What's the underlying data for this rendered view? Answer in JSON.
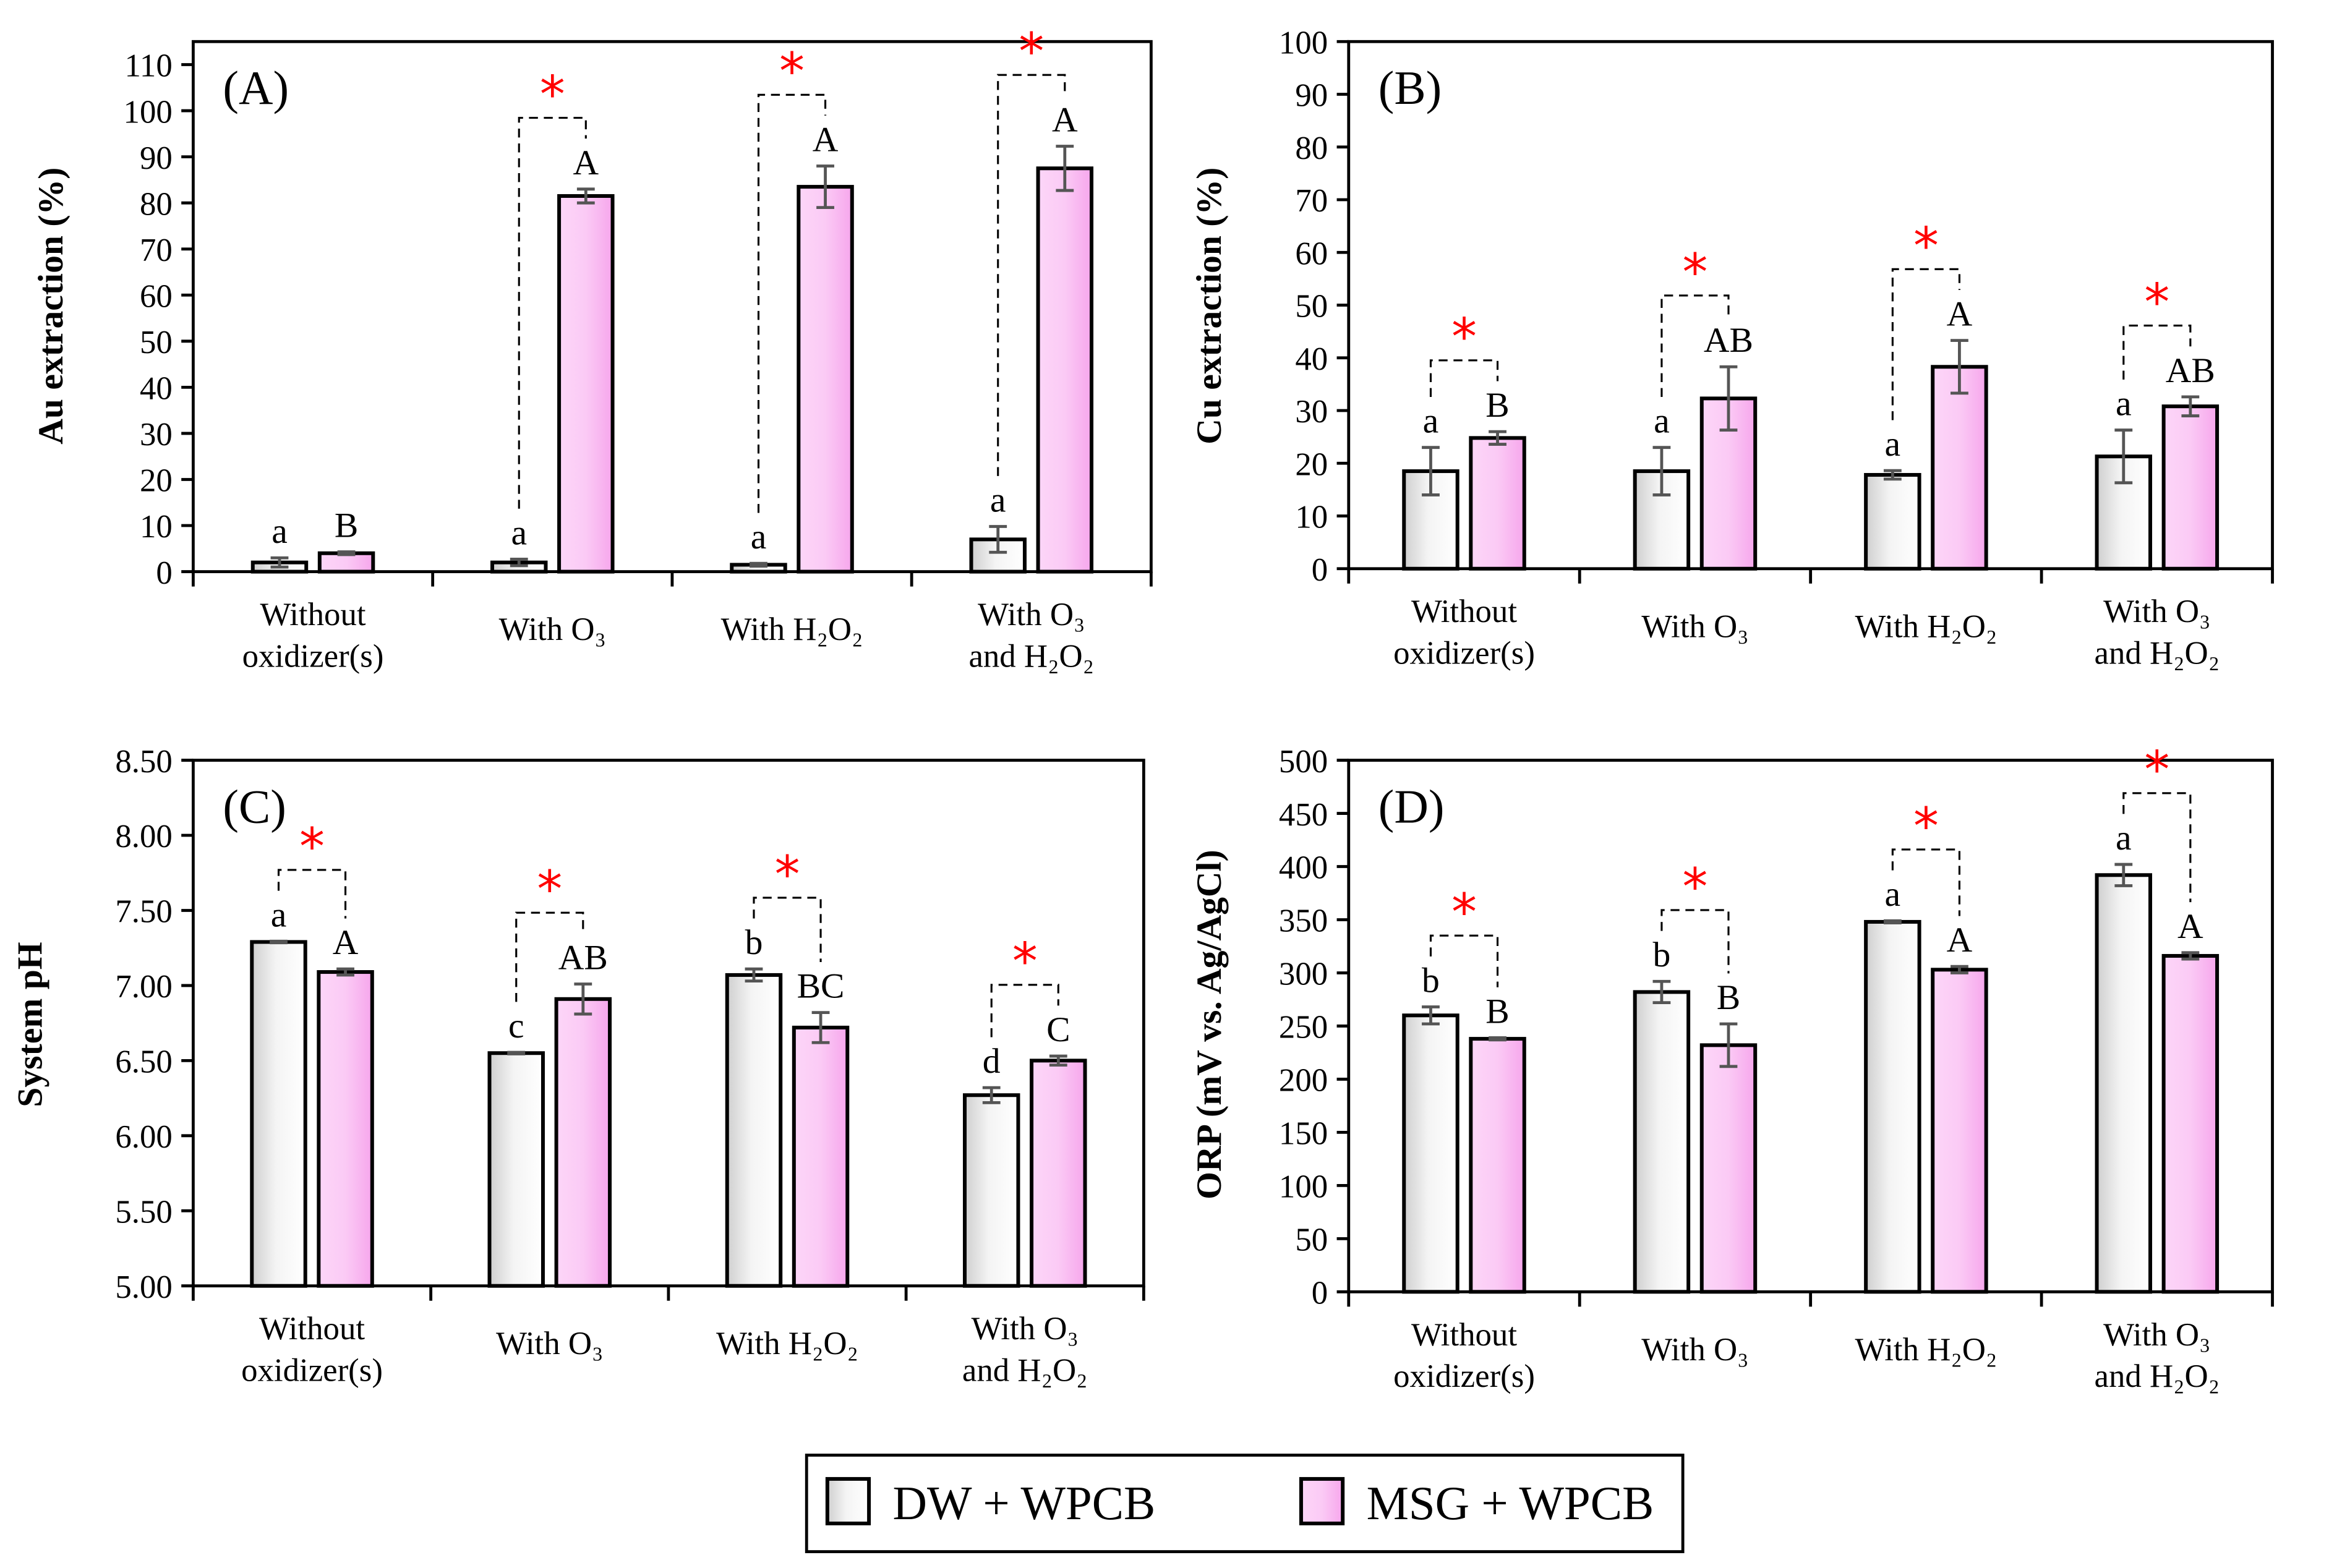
{
  "legend": {
    "entries": [
      {
        "label": "DW + WPCB",
        "color": "#ffffff"
      },
      {
        "label": "MSG + WPCB",
        "color": "#f7b8f0"
      }
    ]
  },
  "colors": {
    "dw": "#ffffff",
    "dw_shade": "#d0d0d0",
    "msg": "#fbc6f4",
    "msg_shade": "#f28ee6",
    "star": "#ff0000",
    "error": "#555555"
  },
  "chart_data": [
    {
      "type": "bar",
      "panel_label": "(A)",
      "ylabel": "Au extraction (%)",
      "categories": [
        [
          "Without",
          "oxidizer(s)"
        ],
        [
          "With O₃"
        ],
        [
          "With H₂O₂"
        ],
        [
          "With O₃",
          "and H₂O₂"
        ]
      ],
      "ylim": [
        0,
        115
      ],
      "yticks": [
        0,
        10,
        20,
        30,
        40,
        50,
        60,
        70,
        80,
        90,
        100,
        110
      ],
      "tick_decimals": 0,
      "series": [
        {
          "name": "DW + WPCB",
          "values": [
            2,
            2,
            1.5,
            7
          ],
          "errors": [
            1,
            0.7,
            0.3,
            2.8
          ],
          "letters": [
            "a",
            "a",
            "a",
            "a"
          ]
        },
        {
          "name": "MSG + WPCB",
          "values": [
            4,
            81.5,
            83.5,
            87.5
          ],
          "errors": [
            0.3,
            1.5,
            4.5,
            4.8
          ],
          "letters": [
            "B",
            "A",
            "A",
            "A"
          ]
        }
      ],
      "significant": [
        false,
        true,
        true,
        true
      ],
      "significance_mark": "*"
    },
    {
      "type": "bar",
      "panel_label": "(B)",
      "ylabel": "Cu extraction (%)",
      "categories": [
        [
          "Without",
          "oxidizer(s)"
        ],
        [
          "With O₃"
        ],
        [
          "With H₂O₂"
        ],
        [
          "With O₃",
          "and H₂O₂"
        ]
      ],
      "ylim": [
        0,
        100
      ],
      "yticks": [
        0,
        10,
        20,
        30,
        40,
        50,
        60,
        70,
        80,
        90,
        100
      ],
      "tick_decimals": 0,
      "series": [
        {
          "name": "DW + WPCB",
          "values": [
            18.5,
            18.5,
            17.8,
            21.3
          ],
          "errors": [
            4.5,
            4.5,
            0.8,
            5
          ],
          "letters": [
            "a",
            "a",
            "a",
            "a"
          ]
        },
        {
          "name": "MSG + WPCB",
          "values": [
            24.8,
            32.3,
            38.3,
            30.8
          ],
          "errors": [
            1.2,
            6,
            5,
            1.8
          ],
          "letters": [
            "B",
            "AB",
            "A",
            "AB"
          ]
        }
      ],
      "significant": [
        true,
        true,
        true,
        true
      ],
      "significance_mark": "*"
    },
    {
      "type": "bar",
      "panel_label": "(C)",
      "ylabel": "System pH",
      "categories": [
        [
          "Without",
          "oxidizer(s)"
        ],
        [
          "With O₃"
        ],
        [
          "With H₂O₂"
        ],
        [
          "With O₃",
          "and H₂O₂"
        ]
      ],
      "ylim": [
        5,
        8.5
      ],
      "yticks": [
        5,
        5.5,
        6,
        6.5,
        7,
        7.5,
        8,
        8.5
      ],
      "tick_decimals": 2,
      "series": [
        {
          "name": "DW + WPCB",
          "values": [
            7.29,
            6.55,
            7.07,
            6.27
          ],
          "errors": [
            0.005,
            0.005,
            0.04,
            0.05
          ],
          "letters": [
            "a",
            "c",
            "b",
            "d"
          ]
        },
        {
          "name": "MSG + WPCB",
          "values": [
            7.09,
            6.91,
            6.72,
            6.5
          ],
          "errors": [
            0.02,
            0.1,
            0.1,
            0.03
          ],
          "letters": [
            "A",
            "AB",
            "BC",
            "C"
          ]
        }
      ],
      "significant": [
        true,
        true,
        true,
        true
      ],
      "significance_mark": "*"
    },
    {
      "type": "bar",
      "panel_label": "(D)",
      "ylabel": "ORP (mV vs. Ag/AgCl)",
      "categories": [
        [
          "Without",
          "oxidizer(s)"
        ],
        [
          "With O₃"
        ],
        [
          "With H₂O₂"
        ],
        [
          "With O₃",
          "and H₂O₂"
        ]
      ],
      "ylim": [
        0,
        500
      ],
      "yticks": [
        0,
        50,
        100,
        150,
        200,
        250,
        300,
        350,
        400,
        450,
        500
      ],
      "tick_decimals": 0,
      "series": [
        {
          "name": "DW + WPCB",
          "values": [
            260,
            282,
            348,
            392
          ],
          "errors": [
            8,
            10,
            1,
            10
          ],
          "letters": [
            "b",
            "b",
            "a",
            "a"
          ]
        },
        {
          "name": "MSG + WPCB",
          "values": [
            238,
            232,
            303,
            316
          ],
          "errors": [
            1,
            20,
            3,
            3
          ],
          "letters": [
            "B",
            "B",
            "A",
            "A"
          ]
        }
      ],
      "significant": [
        true,
        true,
        true,
        true
      ],
      "significance_mark": "*"
    }
  ]
}
